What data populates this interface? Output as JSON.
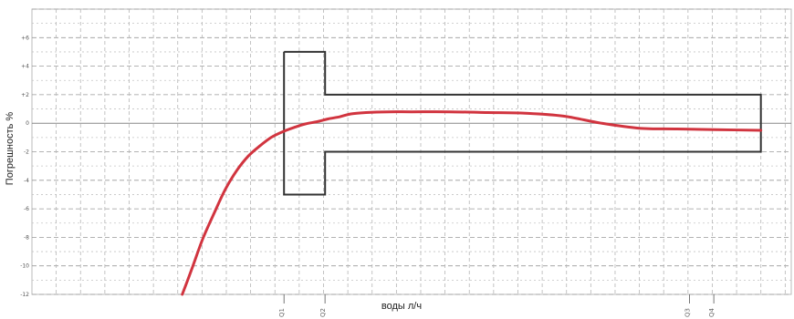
{
  "chart_data": {
    "type": "line",
    "title": "",
    "xlabel": "воды л/ч",
    "ylabel": "Погрешность %",
    "ylim": [
      -12,
      8
    ],
    "yticks": [
      8,
      6,
      4,
      2,
      0,
      -2,
      -4,
      -6,
      -8,
      -10,
      -12
    ],
    "ytick_labels": [
      "",
      "+6",
      "+4",
      "+2",
      "0",
      "-2",
      "-4",
      "-6",
      "-8",
      "-10",
      "-12"
    ],
    "xlim": [
      0,
      100
    ],
    "xtick_markers": [
      {
        "x": 33.2,
        "label": "Q1"
      },
      {
        "x": 38.6,
        "label": "Q2"
      },
      {
        "x": 86.6,
        "label": "Q3"
      },
      {
        "x": 89.8,
        "label": "Q4"
      }
    ],
    "grid": true,
    "tolerance_envelope": {
      "color": "#333333",
      "x": [
        33.2,
        38.6,
        38.6,
        96.0,
        96.0,
        38.6,
        38.6,
        33.2,
        33.2
      ],
      "y": [
        5,
        5,
        2,
        2,
        -2,
        -2,
        -5,
        -5,
        5
      ]
    },
    "series": [
      {
        "color": "#d1343f",
        "x": [
          19.8,
          21.0,
          22.5,
          24.0,
          25.5,
          27.0,
          28.5,
          30.0,
          31.5,
          33.0,
          34.5,
          36.0,
          37.5,
          39.0,
          40.5,
          42.0,
          44.0,
          47.0,
          50.0,
          55.0,
          60.0,
          65.0,
          70.0,
          75.0,
          80.0,
          85.0,
          90.0,
          96.0
        ],
        "y": [
          -12.0,
          -10.3,
          -8.1,
          -6.3,
          -4.6,
          -3.3,
          -2.3,
          -1.6,
          -1.0,
          -0.6,
          -0.3,
          -0.05,
          0.1,
          0.3,
          0.45,
          0.65,
          0.75,
          0.8,
          0.8,
          0.8,
          0.75,
          0.7,
          0.5,
          0.0,
          -0.35,
          -0.4,
          -0.45,
          -0.5
        ]
      }
    ]
  }
}
